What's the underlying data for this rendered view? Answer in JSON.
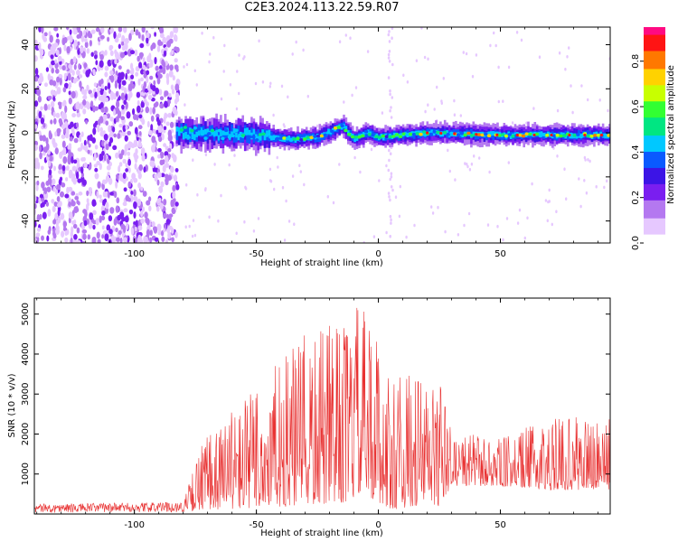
{
  "title": "C2E3.2024.113.22.59.R07",
  "colors": {
    "snr_line": "#e83030",
    "axis": "#000000",
    "cmap": [
      "#ffffff",
      "#e6c8ff",
      "#b478f0",
      "#7a1ef0",
      "#3c14e6",
      "#0a5aff",
      "#00c8ff",
      "#00e682",
      "#32ff32",
      "#c8ff00",
      "#ffd200",
      "#ff7800",
      "#ff1414",
      "#ff0a82"
    ]
  },
  "chart_data": [
    {
      "id": "spectrogram",
      "type": "heatmap",
      "xlabel": "Height of straight line (km)",
      "ylabel": "Frequency (Hz)",
      "xlim": [
        -141,
        95
      ],
      "ylim": [
        -50,
        48
      ],
      "x_ticks": [
        -100,
        -50,
        0,
        50
      ],
      "y_ticks": [
        -40,
        -20,
        0,
        20,
        40
      ],
      "ridge_frequency": [
        {
          "x": -80,
          "y": 0
        },
        {
          "x": -50,
          "y": -1
        },
        {
          "x": -35,
          "y": -3
        },
        {
          "x": -25,
          "y": -2
        },
        {
          "x": -15,
          "y": 3
        },
        {
          "x": -10,
          "y": -3
        },
        {
          "x": -5,
          "y": 0
        },
        {
          "x": 0,
          "y": -2
        },
        {
          "x": 20,
          "y": 0
        },
        {
          "x": 50,
          "y": -1
        },
        {
          "x": 90,
          "y": -1
        }
      ],
      "noise_region": {
        "x_from": -141,
        "x_to": -82
      },
      "colorbar": {
        "label": "Normalized spectral amplitude",
        "ticks": [
          0.0,
          0.2,
          0.4,
          0.6,
          0.8
        ],
        "range": [
          0,
          0.95
        ]
      }
    },
    {
      "id": "snr",
      "type": "line",
      "xlabel": "Height of straight line (km)",
      "ylabel": "SNR (10 * v/v)",
      "xlim": [
        -141,
        95
      ],
      "ylim": [
        0,
        5400
      ],
      "x_ticks": [
        -100,
        -50,
        0,
        50
      ],
      "y_ticks": [
        1000,
        2000,
        3000,
        4000,
        5000
      ],
      "envelope": [
        {
          "x": -141,
          "min": 30,
          "max": 250
        },
        {
          "x": -80,
          "min": 50,
          "max": 300
        },
        {
          "x": -72,
          "min": 100,
          "max": 1900
        },
        {
          "x": -50,
          "min": 150,
          "max": 3300
        },
        {
          "x": -30,
          "min": 200,
          "max": 4500
        },
        {
          "x": -12,
          "min": 300,
          "max": 4900
        },
        {
          "x": -8,
          "min": 500,
          "max": 5350
        },
        {
          "x": 0,
          "min": 300,
          "max": 4400
        },
        {
          "x": 5,
          "min": 100,
          "max": 3400
        },
        {
          "x": 15,
          "min": 200,
          "max": 3600
        },
        {
          "x": 25,
          "min": 200,
          "max": 3500
        },
        {
          "x": 30,
          "min": 700,
          "max": 2100
        },
        {
          "x": 50,
          "min": 700,
          "max": 1900
        },
        {
          "x": 70,
          "min": 600,
          "max": 2400
        },
        {
          "x": 95,
          "min": 600,
          "max": 2600
        }
      ]
    }
  ]
}
